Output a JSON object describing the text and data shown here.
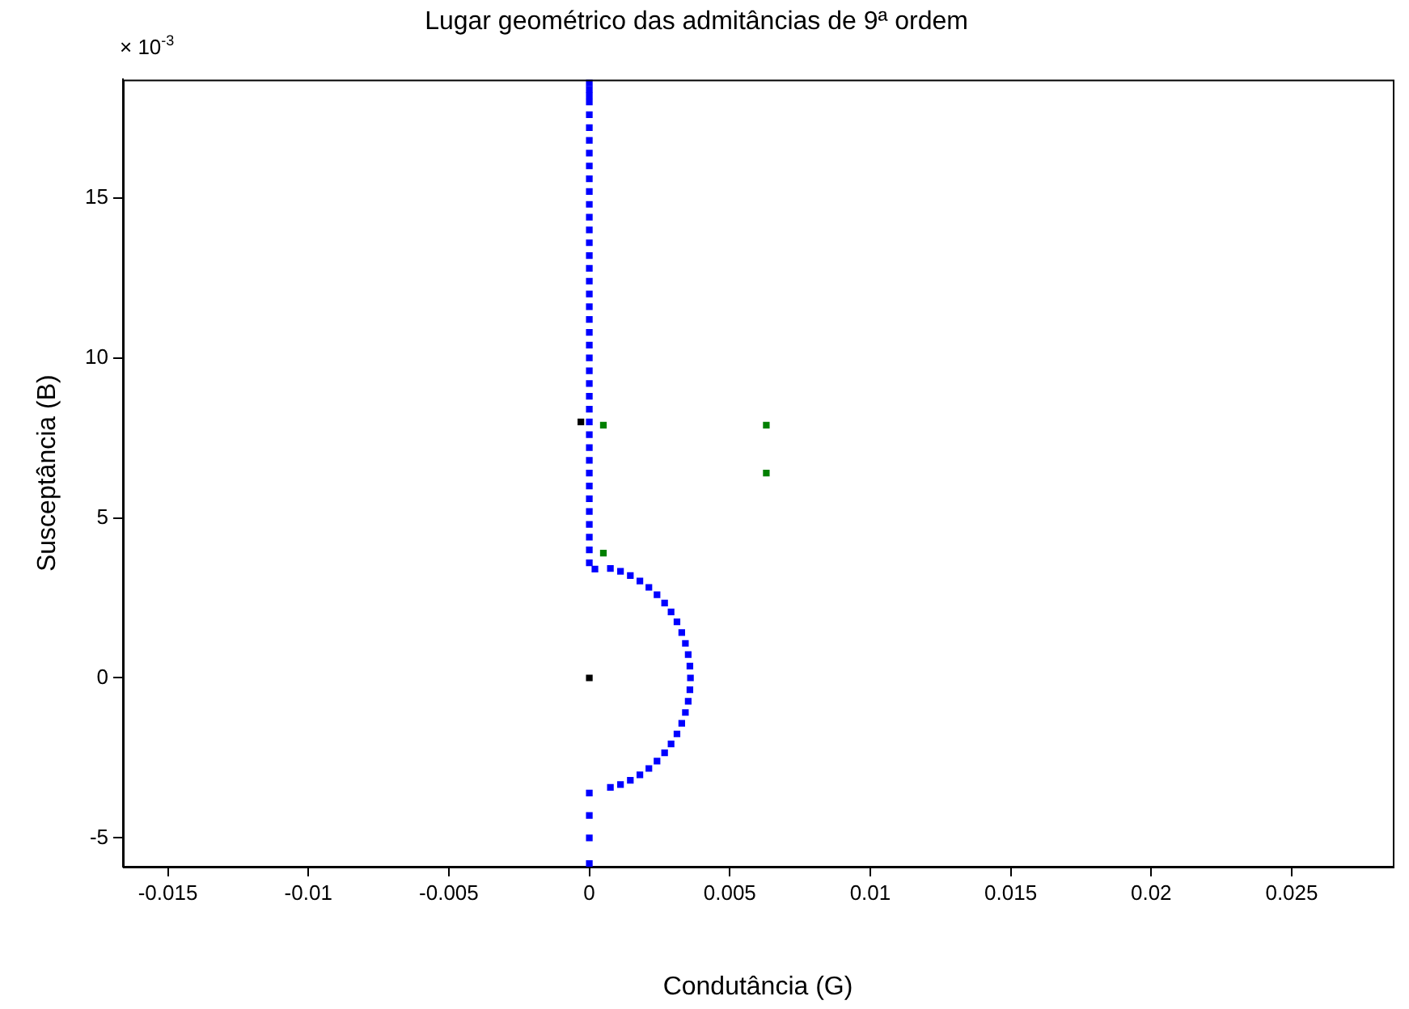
{
  "chart_data": {
    "type": "scatter",
    "title": "Lugar geométrico das admitâncias de 9ª ordem",
    "xlabel": "Condutância (G)",
    "ylabel": "Susceptância (B)",
    "annotations": [
      "× 10$^{-3}$"
    ],
    "xlim": [
      -0.0166,
      0.0286
    ],
    "xticks": [
      -0.015,
      -0.01,
      -0.005,
      0,
      0.005,
      0.01,
      0.015,
      0.02,
      0.025
    ],
    "ylim": [
      -5.9,
      18.7
    ],
    "yticks": [
      -5,
      0,
      5,
      10,
      15
    ],
    "grid": false,
    "legend": false,
    "marker": "square",
    "series": [
      {
        "color": "#0000ff",
        "x": [
          0.0002,
          0,
          0,
          0,
          0,
          0,
          0,
          0,
          0,
          0,
          0,
          0,
          0,
          0,
          0,
          0,
          0,
          0,
          0,
          0,
          0,
          0,
          0,
          0,
          0,
          0,
          0,
          0,
          0,
          0,
          0,
          0,
          0,
          0,
          0,
          0,
          0,
          0,
          0,
          0,
          0
        ],
        "values": [
          3.4,
          3.6,
          4,
          4.4,
          4.8,
          5.2,
          5.6,
          6,
          6.4,
          6.8,
          7.2,
          7.6,
          8,
          8.4,
          8.8,
          9.2,
          9.6,
          10,
          10.4,
          10.8,
          11.2,
          11.6,
          12,
          12.4,
          12.8,
          13.2,
          13.6,
          14,
          14.4,
          14.8,
          15.2,
          15.6,
          16,
          16.4,
          16.8,
          17.2,
          17.6,
          18,
          18.2,
          18.4,
          18.6
        ]
      },
      {
        "color": "#0000ff",
        "x": [
          0.00075,
          0.00111,
          0.00146,
          0.0018,
          0.00212,
          0.00241,
          0.00268,
          0.00291,
          0.00312,
          0.00329,
          0.00342,
          0.00352,
          0.00358,
          0.0036,
          0.00358,
          0.00352,
          0.00342,
          0.00329,
          0.00312,
          0.00291,
          0.00268,
          0.00241,
          0.00212,
          0.0018,
          0.00146,
          0.00111,
          0.00075
        ],
        "values": [
          3.42,
          3.33,
          3.2,
          3.03,
          2.83,
          2.6,
          2.34,
          2.06,
          1.75,
          1.42,
          1.08,
          0.73,
          0.37,
          0,
          -0.37,
          -0.73,
          -1.08,
          -1.42,
          -1.75,
          -2.06,
          -2.34,
          -2.6,
          -2.83,
          -3.03,
          -3.2,
          -3.33,
          -3.42
        ]
      },
      {
        "color": "#0000ff",
        "x": [
          0,
          0,
          0,
          0
        ],
        "values": [
          -3.6,
          -4.3,
          -5,
          -5.8
        ]
      },
      {
        "color": "#000000",
        "x": [
          -0.0003,
          0
        ],
        "values": [
          8,
          0
        ]
      },
      {
        "color": "#008000",
        "x": [
          0.0005,
          0.0005,
          0.0063,
          0.0063
        ],
        "values": [
          7.9,
          3.9,
          7.9,
          6.4
        ]
      }
    ]
  }
}
